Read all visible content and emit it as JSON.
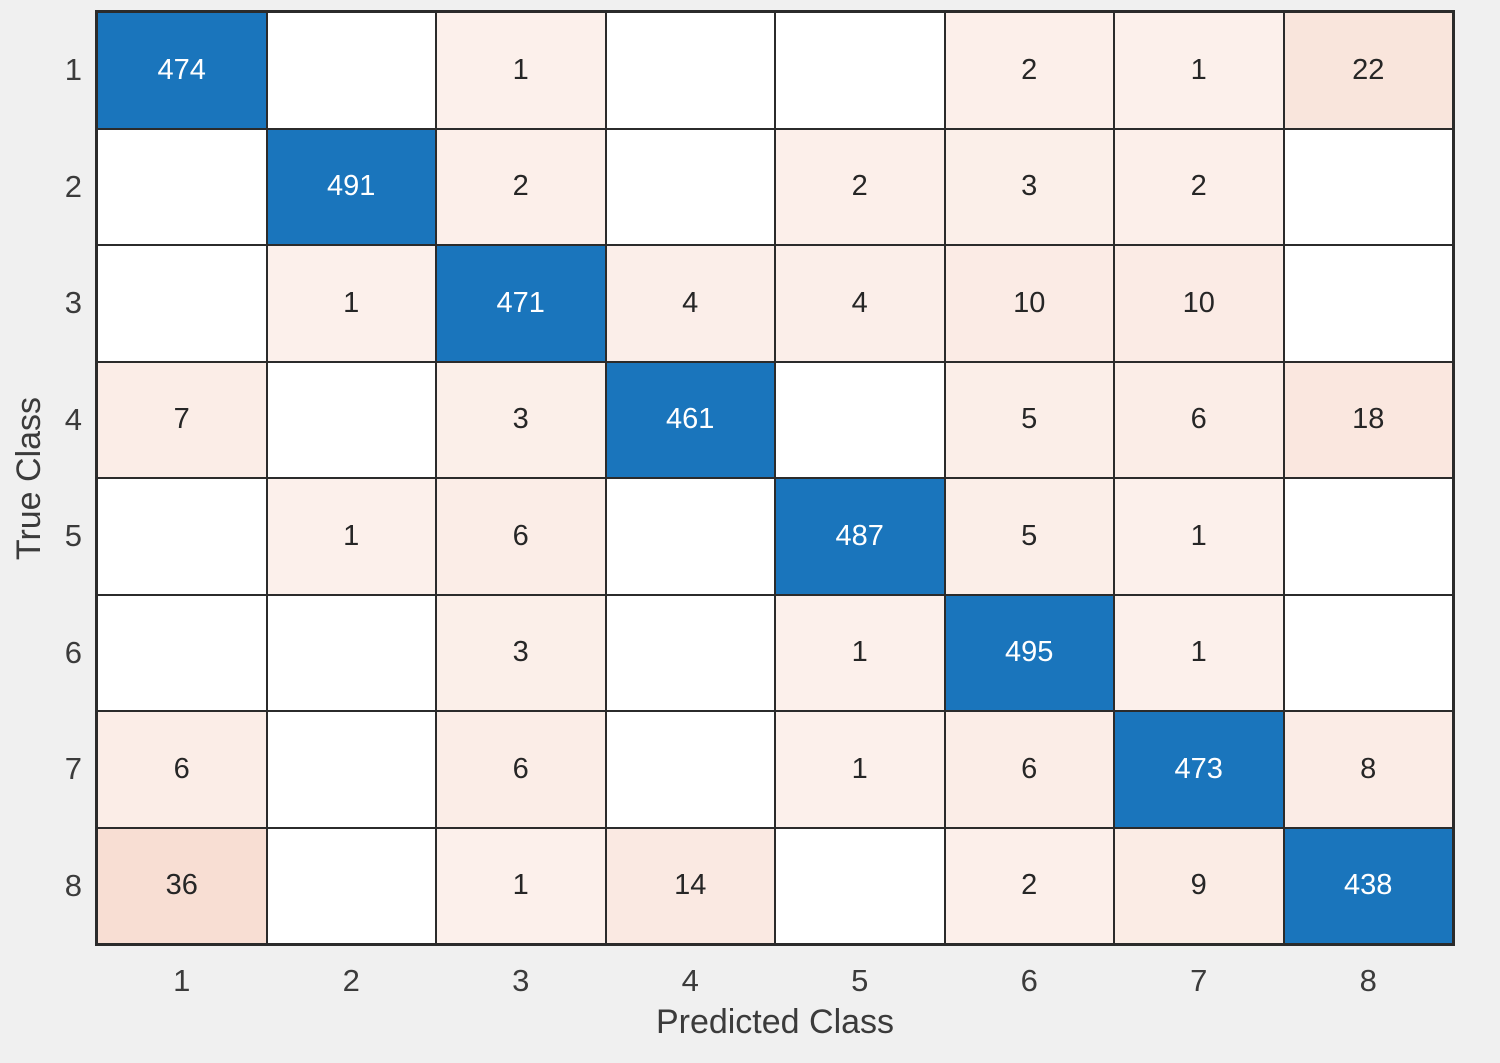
{
  "figure": {
    "background_color": "#f0f0f0"
  },
  "chart_data": {
    "type": "heatmap",
    "subtype": "confusion-matrix",
    "title": "",
    "xlabel": "Predicted Class",
    "ylabel": "True Class",
    "x_tick_labels": [
      "1",
      "2",
      "3",
      "4",
      "5",
      "6",
      "7",
      "8"
    ],
    "y_tick_labels": [
      "1",
      "2",
      "3",
      "4",
      "5",
      "6",
      "7",
      "8"
    ],
    "matrix": [
      [
        474,
        0,
        1,
        0,
        0,
        2,
        1,
        22
      ],
      [
        0,
        491,
        2,
        0,
        2,
        3,
        2,
        0
      ],
      [
        0,
        1,
        471,
        4,
        4,
        10,
        10,
        0
      ],
      [
        7,
        0,
        3,
        461,
        0,
        5,
        6,
        18
      ],
      [
        0,
        1,
        6,
        0,
        487,
        5,
        1,
        0
      ],
      [
        0,
        0,
        3,
        0,
        1,
        495,
        1,
        0
      ],
      [
        6,
        0,
        6,
        0,
        1,
        6,
        473,
        8
      ],
      [
        36,
        0,
        1,
        14,
        0,
        2,
        9,
        438
      ]
    ],
    "grid_on": true,
    "legend_position": "none",
    "colors": {
      "diagonal": "#1a75bc",
      "diagonal_text": "#ffffff",
      "off_diagonal_base": "#d95319",
      "empty_cell": "#ffffff",
      "cell_text": "#262626",
      "grid_line": "#2b2b2b",
      "axis_text": "#3b3b3b",
      "background": "#f0f0f0"
    }
  }
}
